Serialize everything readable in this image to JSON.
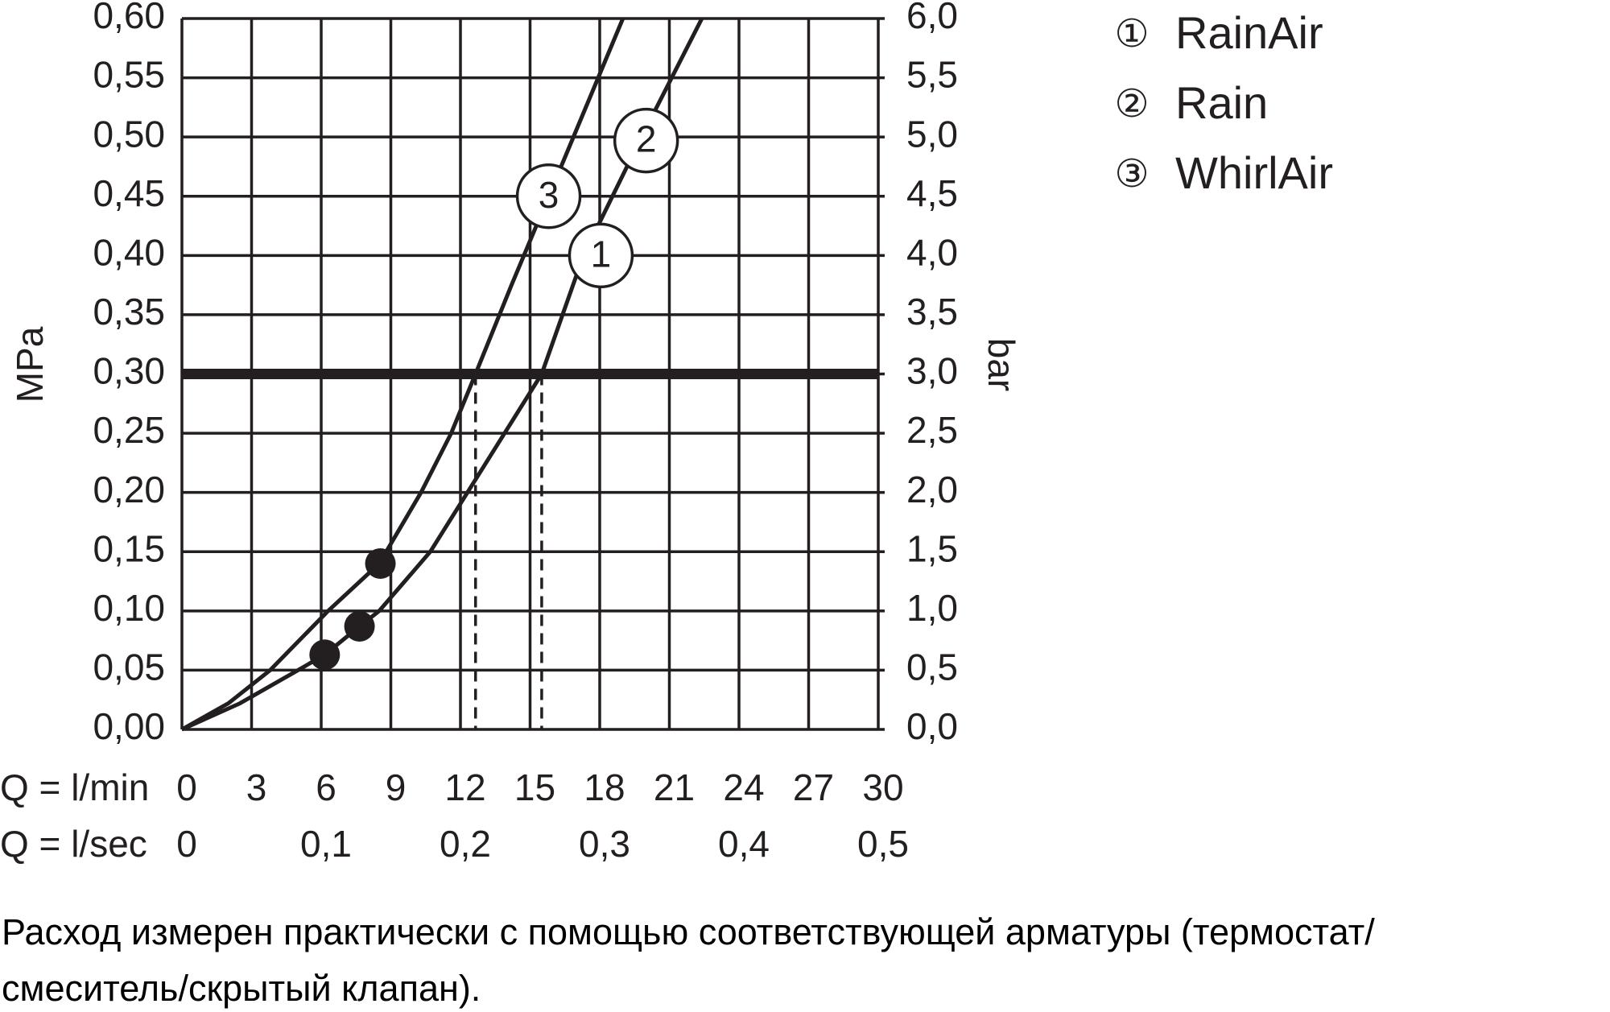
{
  "chart_data": {
    "type": "line",
    "xlim": [
      0,
      30
    ],
    "xticks": [
      0,
      3,
      6,
      9,
      12,
      15,
      18,
      21,
      24,
      27,
      30
    ],
    "x_label": "Q = l/min",
    "x2ticks": [
      0,
      {
        "value": 6,
        "label": "0,1"
      },
      {
        "value": 12,
        "label": "0,2"
      },
      {
        "value": 18,
        "label": "0,3"
      },
      {
        "value": 24,
        "label": "0,4"
      },
      {
        "value": 30,
        "label": "0,5"
      }
    ],
    "x2_label": "Q = l/sec",
    "ylim": [
      0,
      0.6
    ],
    "yticks": [
      {
        "value": 0,
        "label": "0,00"
      },
      {
        "value": 0.05,
        "label": "0,05"
      },
      {
        "value": 0.1,
        "label": "0,10"
      },
      {
        "value": 0.15,
        "label": "0,15"
      },
      {
        "value": 0.2,
        "label": "0,20"
      },
      {
        "value": 0.25,
        "label": "0,25"
      },
      {
        "value": 0.3,
        "label": "0,30"
      },
      {
        "value": 0.35,
        "label": "0,35"
      },
      {
        "value": 0.4,
        "label": "0,40"
      },
      {
        "value": 0.45,
        "label": "0,45"
      },
      {
        "value": 0.5,
        "label": "0,50"
      },
      {
        "value": 0.55,
        "label": "0,55"
      },
      {
        "value": 0.6,
        "label": "0,60"
      }
    ],
    "y_label": "MPa",
    "y2lim": [
      0,
      6
    ],
    "y2ticks": [
      {
        "value": 0,
        "label": "0,0"
      },
      {
        "value": 0.5,
        "label": "0,5"
      },
      {
        "value": 1,
        "label": "1,0"
      },
      {
        "value": 1.5,
        "label": "1,5"
      },
      {
        "value": 2,
        "label": "2,0"
      },
      {
        "value": 2.5,
        "label": "2,5"
      },
      {
        "value": 3,
        "label": "3,0"
      },
      {
        "value": 3.5,
        "label": "3,5"
      },
      {
        "value": 4,
        "label": "4,0"
      },
      {
        "value": 4.5,
        "label": "4,5"
      },
      {
        "value": 5,
        "label": "5,0"
      },
      {
        "value": 5.5,
        "label": "5,5"
      },
      {
        "value": 6,
        "label": "6,0"
      }
    ],
    "y2_label": "bar",
    "grid": true,
    "color": "#231f20",
    "series": [
      {
        "x": [
          0,
          2,
          3.8,
          6.3,
          8.5,
          10.3,
          11.6,
          12.65,
          14.2,
          15.8,
          17.4,
          19.0
        ],
        "values": [
          0,
          0.022,
          0.05,
          0.1,
          0.14,
          0.2,
          0.25,
          0.3,
          0.375,
          0.45,
          0.525,
          0.6
        ]
      },
      {
        "x": [
          0,
          2.5,
          5.0,
          6.15,
          7.65,
          8.5,
          10.7,
          12.3,
          13.9,
          15.5,
          17.3,
          19.8,
          22.4
        ],
        "values": [
          0,
          0.022,
          0.05,
          0.063,
          0.087,
          0.1,
          0.15,
          0.2,
          0.25,
          0.3,
          0.4,
          0.5,
          0.6
        ]
      }
    ],
    "points": {
      "x": [
        6.15,
        7.65,
        8.55
      ],
      "values": [
        0.063,
        0.087,
        0.14
      ]
    },
    "hline": 0.3,
    "vlines": [
      {
        "x": 12.65,
        "y": 0.3
      },
      {
        "x": 15.5,
        "y": 0.3
      }
    ],
    "annotations": [
      {
        "text": "3",
        "x": 15.8,
        "y": 0.45
      },
      {
        "text": "2",
        "x": 20.0,
        "y": 0.497
      },
      {
        "text": "1",
        "x": 18.05,
        "y": 0.4
      }
    ],
    "legend": [
      {
        "marker": "①",
        "label": "RainAir"
      },
      {
        "marker": "②",
        "label": "Rain"
      },
      {
        "marker": "③",
        "label": "WhirlAir"
      }
    ]
  },
  "caption": [
    "Расход измерен практически с помощью соответствующей арматуры (термостат/",
    "смеситель/скрытый клапан)."
  ]
}
